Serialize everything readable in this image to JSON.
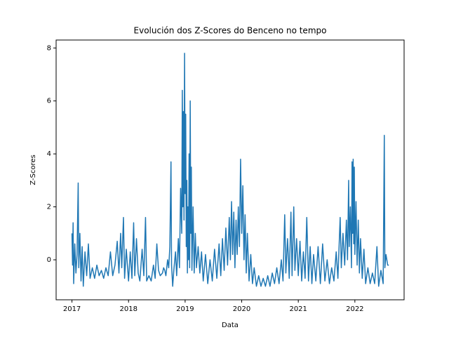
{
  "chart_data": {
    "type": "line",
    "title": "Evolución dos Z-Scores do Benceno no tempo",
    "xlabel": "Data",
    "ylabel": "Z-Scores",
    "xlim": [
      2016.72,
      2022.87
    ],
    "xticks": [
      2017,
      2018,
      2019,
      2020,
      2021,
      2022
    ],
    "ylim": [
      -1.51,
      8.3
    ],
    "yticks": [
      0,
      2,
      4,
      6,
      8
    ],
    "grid": false,
    "series": [
      {
        "name": "Z-Scores",
        "color": "#1f77b4",
        "x": [
          2017.0,
          2017.01,
          2017.02,
          2017.03,
          2017.05,
          2017.07,
          2017.09,
          2017.11,
          2017.12,
          2017.14,
          2017.16,
          2017.18,
          2017.2,
          2017.23,
          2017.26,
          2017.29,
          2017.32,
          2017.36,
          2017.4,
          2017.44,
          2017.48,
          2017.52,
          2017.56,
          2017.6,
          2017.64,
          2017.68,
          2017.72,
          2017.76,
          2017.8,
          2017.83,
          2017.86,
          2017.88,
          2017.91,
          2017.93,
          2017.96,
          2018.0,
          2018.03,
          2018.06,
          2018.09,
          2018.11,
          2018.14,
          2018.17,
          2018.2,
          2018.24,
          2018.27,
          2018.3,
          2018.32,
          2018.36,
          2018.4,
          2018.44,
          2018.47,
          2018.5,
          2018.53,
          2018.56,
          2018.6,
          2018.62,
          2018.64,
          2018.66,
          2018.69,
          2018.71,
          2018.73,
          2018.75,
          2018.76,
          2018.78,
          2018.8,
          2018.83,
          2018.85,
          2018.88,
          2018.9,
          2018.92,
          2018.94,
          2018.95,
          2018.96,
          2018.97,
          2018.98,
          2018.99,
          2019.0,
          2019.01,
          2019.02,
          2019.03,
          2019.04,
          2019.05,
          2019.06,
          2019.07,
          2019.08,
          2019.09,
          2019.1,
          2019.11,
          2019.12,
          2019.14,
          2019.16,
          2019.18,
          2019.2,
          2019.23,
          2019.26,
          2019.29,
          2019.32,
          2019.36,
          2019.4,
          2019.44,
          2019.48,
          2019.52,
          2019.56,
          2019.6,
          2019.63,
          2019.66,
          2019.69,
          2019.72,
          2019.75,
          2019.78,
          2019.8,
          2019.82,
          2019.84,
          2019.86,
          2019.88,
          2019.9,
          2019.92,
          2019.94,
          2019.96,
          2019.98,
          2020.0,
          2020.02,
          2020.04,
          2020.06,
          2020.08,
          2020.1,
          2020.13,
          2020.16,
          2020.19,
          2020.22,
          2020.26,
          2020.3,
          2020.34,
          2020.38,
          2020.42,
          2020.46,
          2020.5,
          2020.54,
          2020.58,
          2020.62,
          2020.66,
          2020.7,
          2020.73,
          2020.76,
          2020.78,
          2020.81,
          2020.84,
          2020.87,
          2020.89,
          2020.92,
          2020.94,
          2020.97,
          2021.0,
          2021.03,
          2021.06,
          2021.09,
          2021.12,
          2021.15,
          2021.18,
          2021.21,
          2021.24,
          2021.27,
          2021.31,
          2021.35,
          2021.39,
          2021.43,
          2021.47,
          2021.51,
          2021.55,
          2021.59,
          2021.63,
          2021.67,
          2021.7,
          2021.74,
          2021.76,
          2021.79,
          2021.82,
          2021.85,
          2021.87,
          2021.89,
          2021.9,
          2021.92,
          2021.94,
          2021.95,
          2021.96,
          2021.97,
          2021.98,
          2021.99,
          2022.0,
          2022.02,
          2022.04,
          2022.06,
          2022.08,
          2022.1,
          2022.13,
          2022.16,
          2022.19,
          2022.23,
          2022.27,
          2022.31,
          2022.35,
          2022.39,
          2022.42,
          2022.46,
          2022.5,
          2022.52,
          2022.53,
          2022.55,
          2022.58,
          2022.6
        ],
        "values": [
          1.0,
          -0.2,
          1.4,
          -0.9,
          0.6,
          -0.5,
          0.2,
          2.9,
          -0.3,
          1.0,
          -0.8,
          0.5,
          -1.0,
          0.3,
          -0.6,
          0.6,
          -0.7,
          -0.3,
          -0.7,
          -0.2,
          -0.6,
          -0.4,
          -0.7,
          -0.3,
          -0.6,
          0.3,
          -0.6,
          -0.2,
          0.7,
          -0.5,
          1.0,
          -0.3,
          1.6,
          -0.7,
          0.4,
          -0.8,
          0.3,
          -0.7,
          1.4,
          -0.6,
          0.8,
          -0.5,
          -0.8,
          0.4,
          -0.6,
          1.6,
          -0.8,
          -0.6,
          -0.8,
          -0.2,
          -0.7,
          0.6,
          -0.4,
          -0.6,
          -0.5,
          -0.3,
          -0.4,
          -0.6,
          0.0,
          -0.3,
          0.5,
          3.7,
          -0.2,
          -1.0,
          -0.4,
          0.3,
          -0.6,
          0.8,
          -0.3,
          2.7,
          1.0,
          6.4,
          2.0,
          5.6,
          1.5,
          7.8,
          2.5,
          5.5,
          0.5,
          3.0,
          -0.5,
          2.0,
          0.0,
          4.0,
          -0.3,
          6.0,
          1.0,
          3.5,
          -0.4,
          2.0,
          -0.5,
          1.0,
          -0.3,
          0.5,
          -0.5,
          0.3,
          -0.8,
          0.2,
          -0.9,
          0.0,
          -0.8,
          0.4,
          -0.7,
          0.6,
          -0.6,
          0.8,
          -0.4,
          1.2,
          -0.2,
          1.6,
          0.0,
          2.2,
          0.2,
          1.8,
          -0.3,
          1.5,
          0.2,
          2.0,
          0.5,
          3.8,
          1.0,
          2.8,
          0.0,
          1.7,
          -0.5,
          1.0,
          -0.8,
          0.2,
          -0.9,
          -0.3,
          -1.0,
          -0.6,
          -1.0,
          -0.7,
          -1.0,
          -0.6,
          -1.0,
          -0.5,
          -0.9,
          -0.3,
          -0.9,
          0.0,
          -0.8,
          1.7,
          -0.5,
          0.8,
          -0.7,
          1.8,
          -0.6,
          2.0,
          -0.4,
          0.8,
          -0.6,
          0.7,
          -0.8,
          0.3,
          -0.7,
          1.6,
          -0.8,
          0.5,
          -0.9,
          0.2,
          -0.8,
          0.5,
          -0.9,
          0.6,
          -0.8,
          0.0,
          -0.9,
          -0.3,
          -0.8,
          0.3,
          -0.7,
          1.6,
          -0.3,
          1.0,
          -0.2,
          1.5,
          0.0,
          3.0,
          0.5,
          2.0,
          -0.3,
          3.7,
          1.0,
          3.8,
          0.6,
          3.5,
          0.2,
          2.2,
          -0.2,
          1.5,
          -0.5,
          0.8,
          -0.7,
          0.4,
          -0.9,
          -0.3,
          -0.9,
          -0.5,
          -0.9,
          0.5,
          -1.0,
          -0.4,
          -0.9,
          4.7,
          -0.3,
          0.2,
          -0.2,
          -0.2
        ]
      }
    ]
  }
}
